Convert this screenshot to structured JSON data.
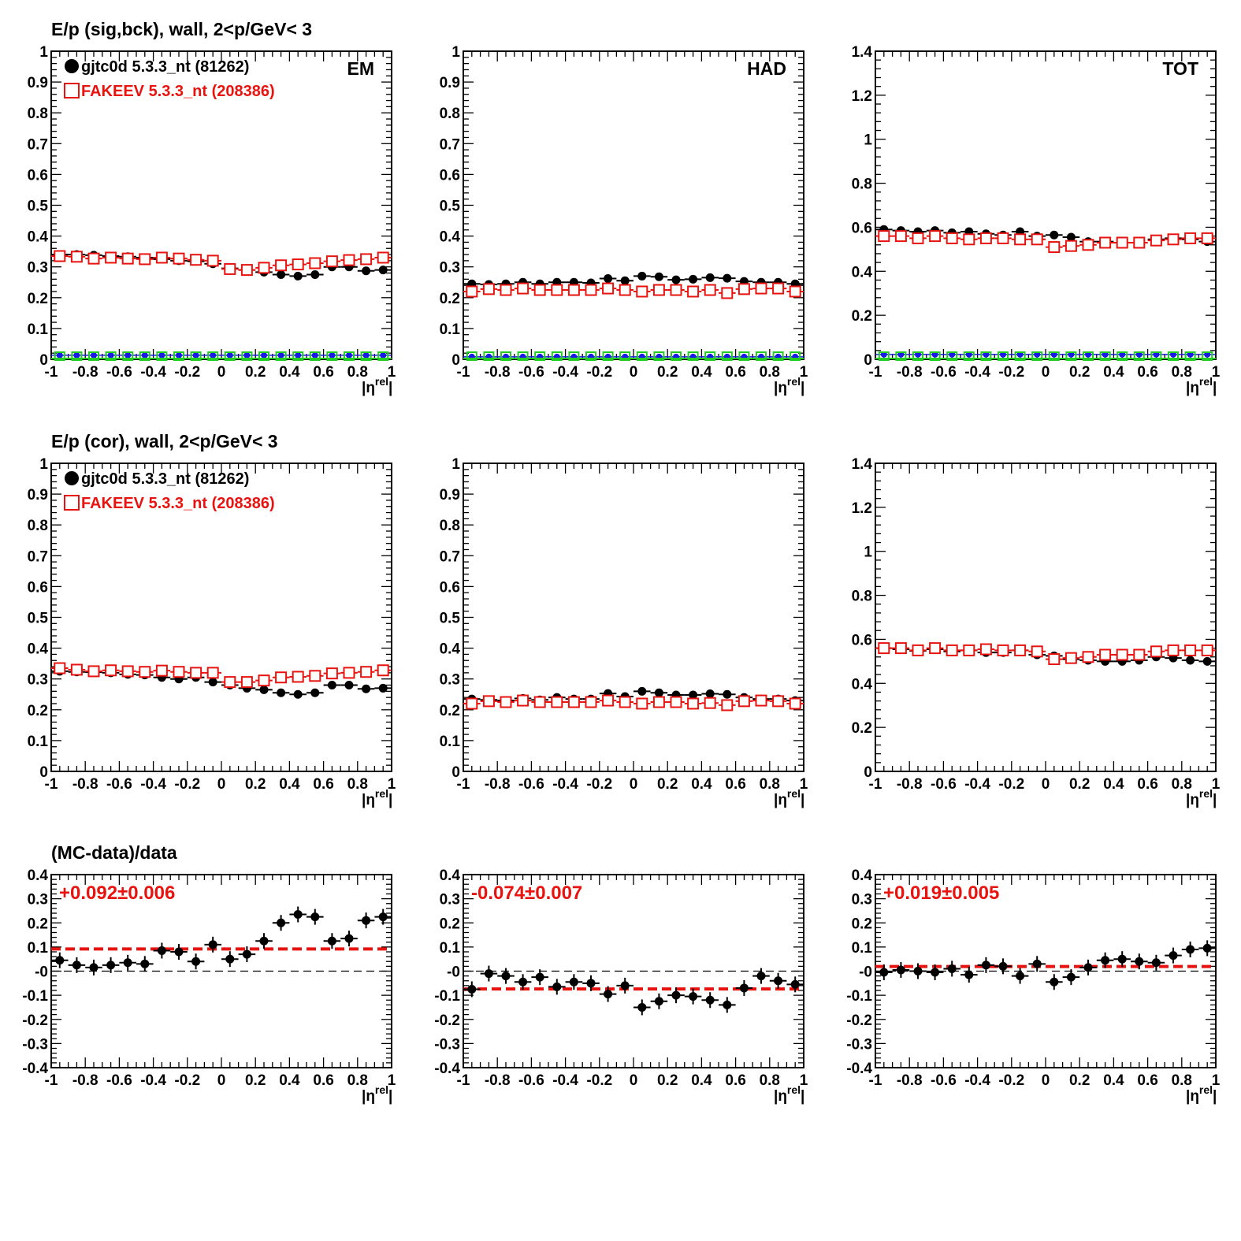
{
  "colors": {
    "sig": "#000000",
    "bck": "#e8130f",
    "blue": "#1a1ae6",
    "green": "#22cc22",
    "fit": "#e8130f"
  },
  "row_titles": [
    "E/p (sig,bck), wall,  2<p/GeV< 3",
    "E/p (cor), wall,  2<p/GeV< 3",
    "(MC-data)/data"
  ],
  "legend": {
    "sig": "gjtc0d 5.3.3_nt (81262)",
    "bck": "FAKEEV 5.3.3_nt (208386)"
  },
  "x_axis_label": "|η",
  "x_axis_label_sup": "rel",
  "x_axis_label_end": "|",
  "x_tick_labels": [
    "-1",
    "-0.8",
    "-0.6",
    "-0.4",
    "-0.2",
    "0",
    "0.2",
    "0.4",
    "0.6",
    "0.8",
    "1"
  ],
  "chart_data": [
    {
      "type": "scatter",
      "row": 0,
      "col": 0,
      "corner_label": "EM",
      "xlim": [
        -1,
        1
      ],
      "ylim": [
        0,
        1
      ],
      "y_tick_labels": [
        "0",
        "0.1",
        "0.2",
        "0.3",
        "0.4",
        "0.5",
        "0.6",
        "0.7",
        "0.8",
        "0.9",
        "1"
      ],
      "x": [
        -0.95,
        -0.85,
        -0.75,
        -0.65,
        -0.55,
        -0.45,
        -0.35,
        -0.25,
        -0.15,
        -0.05,
        0.05,
        0.15,
        0.25,
        0.35,
        0.45,
        0.55,
        0.65,
        0.75,
        0.85,
        0.95
      ],
      "series": [
        {
          "name": "gjtc0d 5.3.3_nt (81262)",
          "marker": "filled-circle",
          "values": [
            0.34,
            0.34,
            0.338,
            0.335,
            0.333,
            0.33,
            0.325,
            0.32,
            0.318,
            0.31,
            0.295,
            0.29,
            0.283,
            0.275,
            0.27,
            0.275,
            0.3,
            0.3,
            0.287,
            0.29
          ]
        },
        {
          "name": "FAKEEV 5.3.3_nt (208386)",
          "marker": "open-square",
          "values": [
            0.335,
            0.333,
            0.327,
            0.33,
            0.327,
            0.325,
            0.33,
            0.327,
            0.323,
            0.32,
            0.293,
            0.29,
            0.297,
            0.305,
            0.308,
            0.312,
            0.318,
            0.322,
            0.325,
            0.33
          ]
        },
        {
          "marker": "small-blue-circle",
          "values": [
            0.013,
            0.013,
            0.013,
            0.013,
            0.013,
            0.013,
            0.013,
            0.013,
            0.013,
            0.013,
            0.013,
            0.013,
            0.013,
            0.013,
            0.013,
            0.013,
            0.013,
            0.013,
            0.013,
            0.013
          ]
        },
        {
          "marker": "small-green-square",
          "values": [
            0,
            0,
            0,
            0,
            0,
            0,
            0,
            0,
            0,
            0,
            0,
            0,
            0,
            0,
            0,
            0,
            0,
            0,
            0,
            0
          ]
        }
      ]
    },
    {
      "type": "scatter",
      "row": 0,
      "col": 1,
      "corner_label": "HAD",
      "xlim": [
        -1,
        1
      ],
      "ylim": [
        0,
        1
      ],
      "y_tick_labels": [
        "0",
        "0.1",
        "0.2",
        "0.3",
        "0.4",
        "0.5",
        "0.6",
        "0.7",
        "0.8",
        "0.9",
        "1"
      ],
      "x": [
        -0.95,
        -0.85,
        -0.75,
        -0.65,
        -0.55,
        -0.45,
        -0.35,
        -0.25,
        -0.15,
        -0.05,
        0.05,
        0.15,
        0.25,
        0.35,
        0.45,
        0.55,
        0.65,
        0.75,
        0.85,
        0.95
      ],
      "series": [
        {
          "name": "gjtc0d 5.3.3_nt (81262)",
          "marker": "filled-circle",
          "values": [
            0.245,
            0.243,
            0.245,
            0.25,
            0.245,
            0.25,
            0.25,
            0.248,
            0.262,
            0.255,
            0.27,
            0.268,
            0.258,
            0.26,
            0.265,
            0.263,
            0.253,
            0.25,
            0.25,
            0.245
          ]
        },
        {
          "name": "FAKEEV 5.3.3_nt (208386)",
          "marker": "open-square",
          "values": [
            0.22,
            0.228,
            0.225,
            0.23,
            0.225,
            0.225,
            0.225,
            0.225,
            0.23,
            0.225,
            0.22,
            0.225,
            0.225,
            0.22,
            0.225,
            0.215,
            0.228,
            0.23,
            0.23,
            0.22
          ]
        },
        {
          "marker": "small-blue-circle",
          "values": [
            0.008,
            0.008,
            0.008,
            0.008,
            0.008,
            0.008,
            0.008,
            0.008,
            0.008,
            0.008,
            0.008,
            0.008,
            0.008,
            0.008,
            0.008,
            0.008,
            0.008,
            0.008,
            0.008,
            0.008
          ]
        },
        {
          "marker": "small-green-square",
          "values": [
            0,
            0,
            0,
            0,
            0,
            0,
            0,
            0,
            0,
            0,
            0,
            0,
            0,
            0,
            0,
            0,
            0,
            0,
            0,
            0
          ]
        }
      ]
    },
    {
      "type": "scatter",
      "row": 0,
      "col": 2,
      "corner_label": "TOT",
      "xlim": [
        -1,
        1
      ],
      "ylim": [
        0,
        1.4
      ],
      "y_tick_labels": [
        "0",
        "0.2",
        "0.4",
        "0.6",
        "0.8",
        "1",
        "1.2",
        "1.4"
      ],
      "x": [
        -0.95,
        -0.85,
        -0.75,
        -0.65,
        -0.55,
        -0.45,
        -0.35,
        -0.25,
        -0.15,
        -0.05,
        0.05,
        0.15,
        0.25,
        0.35,
        0.45,
        0.55,
        0.65,
        0.75,
        0.85,
        0.95
      ],
      "series": [
        {
          "name": "gjtc0d 5.3.3_nt (81262)",
          "marker": "filled-circle",
          "values": [
            0.59,
            0.585,
            0.58,
            0.585,
            0.575,
            0.58,
            0.57,
            0.565,
            0.58,
            0.56,
            0.565,
            0.555,
            0.535,
            0.535,
            0.53,
            0.53,
            0.545,
            0.55,
            0.545,
            0.535
          ]
        },
        {
          "name": "FAKEEV 5.3.3_nt (208386)",
          "marker": "open-square",
          "values": [
            0.56,
            0.56,
            0.55,
            0.56,
            0.55,
            0.545,
            0.55,
            0.55,
            0.545,
            0.545,
            0.51,
            0.515,
            0.52,
            0.53,
            0.53,
            0.53,
            0.54,
            0.545,
            0.55,
            0.55
          ]
        },
        {
          "marker": "small-blue-circle",
          "values": [
            0.022,
            0.022,
            0.022,
            0.022,
            0.022,
            0.022,
            0.022,
            0.022,
            0.022,
            0.022,
            0.022,
            0.022,
            0.022,
            0.022,
            0.022,
            0.022,
            0.022,
            0.022,
            0.022,
            0.022
          ]
        },
        {
          "marker": "small-green-square",
          "values": [
            0,
            0,
            0,
            0,
            0,
            0,
            0,
            0,
            0,
            0,
            0,
            0,
            0,
            0,
            0,
            0,
            0,
            0,
            0,
            0
          ]
        }
      ]
    },
    {
      "type": "scatter",
      "row": 1,
      "col": 0,
      "xlim": [
        -1,
        1
      ],
      "ylim": [
        0,
        1
      ],
      "y_tick_labels": [
        "0",
        "0.1",
        "0.2",
        "0.3",
        "0.4",
        "0.5",
        "0.6",
        "0.7",
        "0.8",
        "0.9",
        "1"
      ],
      "x": [
        -0.95,
        -0.85,
        -0.75,
        -0.65,
        -0.55,
        -0.45,
        -0.35,
        -0.25,
        -0.15,
        -0.05,
        0.05,
        0.15,
        0.25,
        0.35,
        0.45,
        0.55,
        0.65,
        0.75,
        0.85,
        0.95
      ],
      "series": [
        {
          "name": "gjtc0d 5.3.3_nt (81262)",
          "marker": "filled-circle",
          "values": [
            0.325,
            0.323,
            0.322,
            0.32,
            0.315,
            0.313,
            0.305,
            0.3,
            0.305,
            0.29,
            0.28,
            0.27,
            0.265,
            0.255,
            0.25,
            0.255,
            0.28,
            0.28,
            0.268,
            0.27
          ]
        },
        {
          "name": "FAKEEV 5.3.3_nt (208386)",
          "marker": "open-square",
          "values": [
            0.335,
            0.33,
            0.325,
            0.328,
            0.325,
            0.323,
            0.327,
            0.323,
            0.32,
            0.32,
            0.29,
            0.29,
            0.295,
            0.305,
            0.307,
            0.31,
            0.318,
            0.32,
            0.323,
            0.328
          ]
        }
      ]
    },
    {
      "type": "scatter",
      "row": 1,
      "col": 1,
      "xlim": [
        -1,
        1
      ],
      "ylim": [
        0,
        1
      ],
      "y_tick_labels": [
        "0",
        "0.1",
        "0.2",
        "0.3",
        "0.4",
        "0.5",
        "0.6",
        "0.7",
        "0.8",
        "0.9",
        "1"
      ],
      "x": [
        -0.95,
        -0.85,
        -0.75,
        -0.65,
        -0.55,
        -0.45,
        -0.35,
        -0.25,
        -0.15,
        -0.05,
        0.05,
        0.15,
        0.25,
        0.35,
        0.45,
        0.55,
        0.65,
        0.75,
        0.85,
        0.95
      ],
      "series": [
        {
          "name": "gjtc0d 5.3.3_nt (81262)",
          "marker": "filled-circle",
          "values": [
            0.235,
            0.232,
            0.23,
            0.237,
            0.232,
            0.24,
            0.235,
            0.235,
            0.253,
            0.243,
            0.26,
            0.255,
            0.248,
            0.248,
            0.252,
            0.25,
            0.24,
            0.235,
            0.235,
            0.23
          ]
        },
        {
          "name": "FAKEEV 5.3.3_nt (208386)",
          "marker": "open-square",
          "values": [
            0.22,
            0.228,
            0.225,
            0.23,
            0.225,
            0.225,
            0.225,
            0.225,
            0.23,
            0.225,
            0.22,
            0.225,
            0.225,
            0.22,
            0.222,
            0.215,
            0.228,
            0.23,
            0.228,
            0.22
          ]
        }
      ]
    },
    {
      "type": "scatter",
      "row": 1,
      "col": 2,
      "xlim": [
        -1,
        1
      ],
      "ylim": [
        0,
        1.4
      ],
      "y_tick_labels": [
        "0",
        "0.2",
        "0.4",
        "0.6",
        "0.8",
        "1",
        "1.2",
        "1.4"
      ],
      "x": [
        -0.95,
        -0.85,
        -0.75,
        -0.65,
        -0.55,
        -0.45,
        -0.35,
        -0.25,
        -0.15,
        -0.05,
        0.05,
        0.15,
        0.25,
        0.35,
        0.45,
        0.55,
        0.65,
        0.75,
        0.85,
        0.95
      ],
      "series": [
        {
          "name": "gjtc0d 5.3.3_nt (81262)",
          "marker": "filled-circle",
          "values": [
            0.56,
            0.555,
            0.548,
            0.555,
            0.545,
            0.55,
            0.54,
            0.54,
            0.55,
            0.53,
            0.525,
            0.51,
            0.505,
            0.5,
            0.5,
            0.505,
            0.52,
            0.515,
            0.505,
            0.5
          ]
        },
        {
          "name": "FAKEEV 5.3.3_nt (208386)",
          "marker": "open-square",
          "values": [
            0.56,
            0.56,
            0.55,
            0.56,
            0.55,
            0.55,
            0.555,
            0.55,
            0.55,
            0.545,
            0.51,
            0.515,
            0.52,
            0.53,
            0.53,
            0.53,
            0.545,
            0.55,
            0.55,
            0.55
          ]
        }
      ]
    },
    {
      "type": "scatter",
      "row": 2,
      "col": 0,
      "xlim": [
        -1,
        1
      ],
      "ylim": [
        -0.4,
        0.4
      ],
      "y_tick_labels": [
        "-0.4",
        "-0.3",
        "-0.2",
        "-0.1",
        "-0",
        "0.1",
        "0.2",
        "0.3",
        "0.4"
      ],
      "fit_label": "+0.092±0.006",
      "fit_value": 0.092,
      "x": [
        -0.95,
        -0.85,
        -0.75,
        -0.65,
        -0.55,
        -0.45,
        -0.35,
        -0.25,
        -0.15,
        -0.05,
        0.05,
        0.15,
        0.25,
        0.35,
        0.45,
        0.55,
        0.65,
        0.75,
        0.85,
        0.95
      ],
      "series": [
        {
          "marker": "filled-circle",
          "values": [
            0.045,
            0.025,
            0.015,
            0.025,
            0.035,
            0.03,
            0.085,
            0.08,
            0.04,
            0.11,
            0.05,
            0.07,
            0.125,
            0.2,
            0.235,
            0.225,
            0.125,
            0.135,
            0.21,
            0.225
          ]
        }
      ]
    },
    {
      "type": "scatter",
      "row": 2,
      "col": 1,
      "xlim": [
        -1,
        1
      ],
      "ylim": [
        -0.4,
        0.4
      ],
      "y_tick_labels": [
        "-0.4",
        "-0.3",
        "-0.2",
        "-0.1",
        "-0",
        "0.1",
        "0.2",
        "0.3",
        "0.4"
      ],
      "fit_label": "-0.074±0.007",
      "fit_value": -0.074,
      "x": [
        -0.95,
        -0.85,
        -0.75,
        -0.65,
        -0.55,
        -0.45,
        -0.35,
        -0.25,
        -0.15,
        -0.05,
        0.05,
        0.15,
        0.25,
        0.35,
        0.45,
        0.55,
        0.65,
        0.75,
        0.85,
        0.95
      ],
      "series": [
        {
          "marker": "filled-circle",
          "values": [
            -0.075,
            -0.01,
            -0.02,
            -0.045,
            -0.025,
            -0.065,
            -0.045,
            -0.05,
            -0.095,
            -0.06,
            -0.15,
            -0.125,
            -0.1,
            -0.105,
            -0.12,
            -0.14,
            -0.07,
            -0.02,
            -0.04,
            -0.055
          ]
        }
      ]
    },
    {
      "type": "scatter",
      "row": 2,
      "col": 2,
      "xlim": [
        -1,
        1
      ],
      "ylim": [
        -0.4,
        0.4
      ],
      "y_tick_labels": [
        "-0.4",
        "-0.3",
        "-0.2",
        "-0.1",
        "-0",
        "0.1",
        "0.2",
        "0.3",
        "0.4"
      ],
      "fit_label": "+0.019±0.005",
      "fit_value": 0.019,
      "x": [
        -0.95,
        -0.85,
        -0.75,
        -0.65,
        -0.55,
        -0.45,
        -0.35,
        -0.25,
        -0.15,
        -0.05,
        0.05,
        0.15,
        0.25,
        0.35,
        0.45,
        0.55,
        0.65,
        0.75,
        0.85,
        0.95
      ],
      "series": [
        {
          "marker": "filled-circle",
          "values": [
            -0.005,
            0.005,
            0,
            -0.005,
            0.01,
            -0.015,
            0.025,
            0.02,
            -0.02,
            0.03,
            -0.045,
            -0.025,
            0.015,
            0.045,
            0.05,
            0.04,
            0.035,
            0.065,
            0.09,
            0.095
          ]
        }
      ]
    }
  ]
}
